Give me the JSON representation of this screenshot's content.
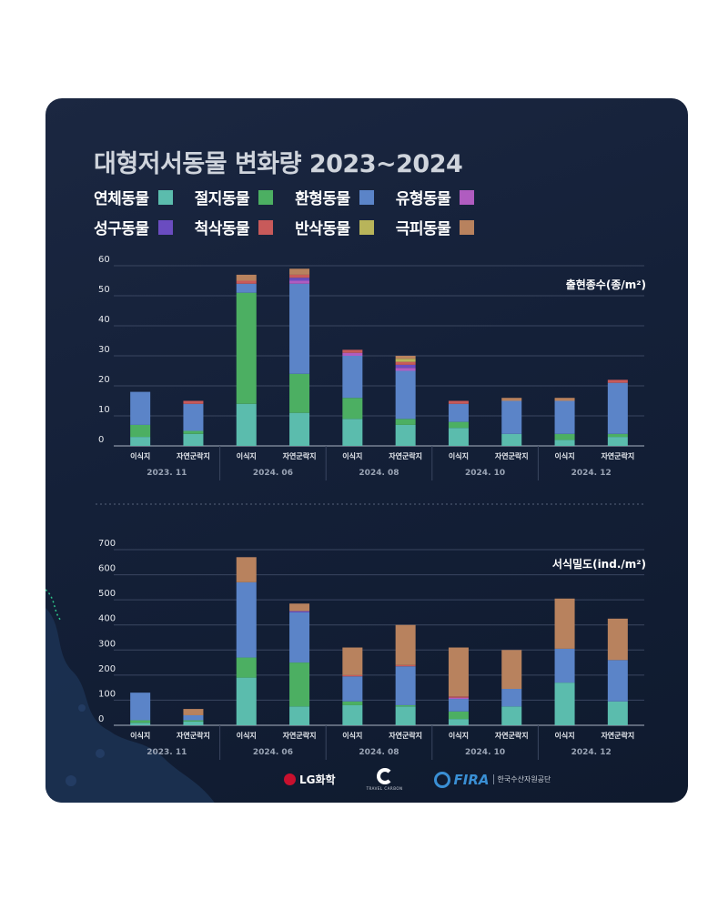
{
  "title": "대형저서동물 변화량 2023~2024",
  "legend": [
    {
      "name": "연체동물",
      "color": "#5bbcad"
    },
    {
      "name": "절지동물",
      "color": "#4caf62"
    },
    {
      "name": "환형동물",
      "color": "#5b84c8"
    },
    {
      "name": "유형동물",
      "color": "#b05cc0"
    },
    {
      "name": "성구동물",
      "color": "#6a4cc0"
    },
    {
      "name": "척삭동물",
      "color": "#c85a5a"
    },
    {
      "name": "반삭동물",
      "color": "#b8b45a"
    },
    {
      "name": "극피동물",
      "color": "#b8825e"
    }
  ],
  "logos": {
    "lg": "LG화학",
    "tc": "TRAVEL CARBON",
    "fira": "FIRA",
    "fira_sub": "한국수산자원공단"
  },
  "chart_data": [
    {
      "type": "bar",
      "stacked": true,
      "title": "출현종수(종/m²)",
      "ylim": [
        0,
        60
      ],
      "yticks": [
        "0",
        "10",
        "20",
        "30",
        "40",
        "50",
        "60"
      ],
      "categories": [
        "이식지",
        "자연군락지",
        "이식지",
        "자연군락지",
        "이식지",
        "자연군락지",
        "이식지",
        "자연군락지",
        "이식지",
        "자연군락지"
      ],
      "groups": [
        "2023. 11",
        "2024. 06",
        "2024. 08",
        "2024. 10",
        "2024. 12"
      ],
      "series": [
        {
          "name": "연체동물",
          "values": [
            3,
            4,
            14,
            11,
            9,
            7,
            6,
            4,
            2,
            3
          ]
        },
        {
          "name": "절지동물",
          "values": [
            4,
            1,
            37,
            13,
            7,
            2,
            2,
            0,
            2,
            1
          ]
        },
        {
          "name": "환형동물",
          "values": [
            11,
            9,
            3,
            30,
            14,
            16,
            6,
            11,
            11,
            17
          ]
        },
        {
          "name": "유형동물",
          "values": [
            0,
            0,
            0,
            1,
            1,
            1,
            0,
            0,
            0,
            0
          ]
        },
        {
          "name": "성구동물",
          "values": [
            0,
            0,
            0,
            1,
            0,
            1,
            0,
            0,
            0,
            0
          ]
        },
        {
          "name": "척삭동물",
          "values": [
            0,
            1,
            1,
            1,
            1,
            1,
            1,
            0,
            0,
            1
          ]
        },
        {
          "name": "반삭동물",
          "values": [
            0,
            0,
            0,
            0,
            0,
            1,
            0,
            0,
            0,
            0
          ]
        },
        {
          "name": "극피동물",
          "values": [
            0,
            0,
            2,
            2,
            0,
            1,
            0,
            1,
            1,
            0
          ]
        }
      ]
    },
    {
      "type": "bar",
      "stacked": true,
      "title": "서식밀도(ind./m²)",
      "ylim": [
        0,
        700
      ],
      "yticks": [
        "0",
        "100",
        "200",
        "300",
        "400",
        "500",
        "600",
        "700"
      ],
      "categories": [
        "이식지",
        "자연군락지",
        "이식지",
        "자연군락지",
        "이식지",
        "자연군락지",
        "이식지",
        "자연군락지",
        "이식지",
        "자연군락지"
      ],
      "groups": [
        "2023. 11",
        "2024. 06",
        "2024. 08",
        "2024. 10",
        "2024. 12"
      ],
      "series": [
        {
          "name": "연체동물",
          "values": [
            10,
            15,
            190,
            75,
            80,
            75,
            25,
            75,
            170,
            95
          ]
        },
        {
          "name": "절지동물",
          "values": [
            10,
            5,
            80,
            175,
            15,
            5,
            30,
            0,
            0,
            0
          ]
        },
        {
          "name": "환형동물",
          "values": [
            110,
            20,
            300,
            200,
            100,
            155,
            50,
            70,
            135,
            165
          ]
        },
        {
          "name": "유형동물",
          "values": [
            0,
            0,
            0,
            0,
            0,
            0,
            5,
            0,
            0,
            0
          ]
        },
        {
          "name": "성구동물",
          "values": [
            0,
            0,
            0,
            5,
            0,
            0,
            0,
            0,
            0,
            0
          ]
        },
        {
          "name": "척삭동물",
          "values": [
            0,
            0,
            0,
            0,
            5,
            5,
            5,
            0,
            0,
            0
          ]
        },
        {
          "name": "반삭동물",
          "values": [
            0,
            0,
            0,
            0,
            0,
            0,
            0,
            0,
            0,
            0
          ]
        },
        {
          "name": "극피동물",
          "values": [
            0,
            25,
            100,
            30,
            110,
            160,
            195,
            155,
            200,
            165
          ]
        }
      ]
    }
  ]
}
